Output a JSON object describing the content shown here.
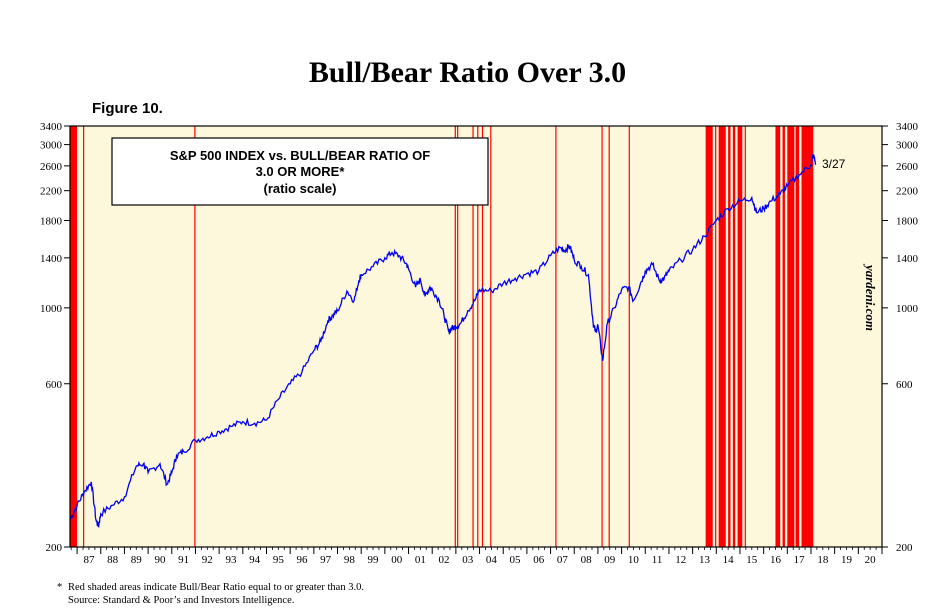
{
  "title": "Bull/Bear Ratio Over 3.0",
  "figure_label": "Figure 10.",
  "footnote": {
    "star": "*",
    "line1": "Red shaded areas indicate Bull/Bear Ratio equal to or greater than 3.0.",
    "line2": "Source: Standard & Poor’s and Investors Intelligence."
  },
  "colors": {
    "background": "#fdf8dc",
    "series": "#0000ee",
    "shade": "#ff0000"
  },
  "chart_data": {
    "type": "line",
    "title": "S&P 500 INDEX vs. BULL/BEAR RATIO OF 3.0 OR MORE*",
    "subtitle": "(ratio scale)",
    "y_scale": "log",
    "ylim": [
      200,
      3400
    ],
    "y_ticks": [
      200,
      600,
      1000,
      1400,
      1800,
      2200,
      2600,
      3000,
      3400
    ],
    "y_tick_labels": [
      "200",
      "600",
      "1000",
      "1400",
      "1800",
      "2200",
      "2600",
      "3000",
      "3400"
    ],
    "xlim": [
      1986.7,
      2021.0
    ],
    "x_tick_labels": [
      "87",
      "88",
      "89",
      "90",
      "91",
      "92",
      "93",
      "94",
      "95",
      "96",
      "97",
      "98",
      "99",
      "00",
      "01",
      "02",
      "03",
      "04",
      "05",
      "06",
      "07",
      "08",
      "09",
      "10",
      "11",
      "12",
      "13",
      "14",
      "15",
      "16",
      "17",
      "18",
      "19",
      "20"
    ],
    "watermark": "yardeni.com",
    "end_label": "3/27",
    "series": [
      {
        "x": [
          1986.7,
          1987.0,
          1987.3,
          1987.6,
          1987.8,
          1987.9,
          1988.0,
          1988.5,
          1989.0,
          1989.5,
          1989.8,
          1990.0,
          1990.5,
          1990.8,
          1991.0,
          1991.2,
          1991.5,
          1992.0,
          1992.5,
          1993.0,
          1993.5,
          1994.0,
          1994.5,
          1995.0,
          1995.5,
          1996.0,
          1996.5,
          1997.0,
          1997.3,
          1997.6,
          1997.8,
          1998.0,
          1998.4,
          1998.7,
          1998.9,
          1999.0,
          1999.5,
          2000.0,
          2000.3,
          2000.6,
          2000.9,
          2001.0,
          2001.3,
          2001.5,
          2001.7,
          2001.9,
          2002.0,
          2002.3,
          2002.5,
          2002.7,
          2002.8,
          2003.0,
          2003.2,
          2003.5,
          2003.8,
          2004.0,
          2004.5,
          2005.0,
          2005.5,
          2006.0,
          2006.5,
          2007.0,
          2007.4,
          2007.6,
          2007.8,
          2008.0,
          2008.3,
          2008.6,
          2008.8,
          2008.9,
          2009.0,
          2009.2,
          2009.4,
          2009.7,
          2010.0,
          2010.3,
          2010.5,
          2010.8,
          2011.0,
          2011.3,
          2011.6,
          2011.8,
          2012.0,
          2012.5,
          2013.0,
          2013.5,
          2014.0,
          2014.5,
          2015.0,
          2015.5,
          2015.7,
          2016.0,
          2016.3,
          2016.7,
          2017.0,
          2017.5,
          2018.0,
          2018.1,
          2018.2
        ],
        "y": [
          240,
          265,
          290,
          310,
          240,
          230,
          250,
          265,
          280,
          345,
          350,
          330,
          350,
          305,
          330,
          370,
          380,
          410,
          420,
          435,
          450,
          465,
          460,
          470,
          540,
          600,
          650,
          750,
          800,
          920,
          950,
          980,
          1120,
          1050,
          1200,
          1250,
          1320,
          1400,
          1450,
          1420,
          1350,
          1300,
          1150,
          1210,
          1080,
          1150,
          1130,
          1050,
          950,
          850,
          870,
          880,
          900,
          980,
          1050,
          1130,
          1120,
          1180,
          1220,
          1260,
          1280,
          1420,
          1500,
          1470,
          1520,
          1380,
          1320,
          1250,
          900,
          850,
          890,
          700,
          900,
          1000,
          1130,
          1150,
          1050,
          1180,
          1280,
          1340,
          1200,
          1220,
          1280,
          1380,
          1480,
          1620,
          1800,
          1950,
          2050,
          2100,
          1900,
          1950,
          2050,
          2150,
          2270,
          2450,
          2620,
          2800,
          2640
        ]
      }
    ],
    "shaded_periods": [
      [
        1986.7,
        1987.0
      ],
      [
        1987.25,
        1987.3
      ],
      [
        1991.95,
        1992.0
      ],
      [
        2002.95,
        2003.0
      ],
      [
        2003.05,
        2003.1
      ],
      [
        2003.7,
        2003.75
      ],
      [
        2003.9,
        2003.95
      ],
      [
        2004.1,
        2004.15
      ],
      [
        2004.45,
        2004.5
      ],
      [
        2007.2,
        2007.25
      ],
      [
        2009.15,
        2009.2
      ],
      [
        2009.45,
        2009.5
      ],
      [
        2010.3,
        2010.35
      ],
      [
        2013.55,
        2013.85
      ],
      [
        2013.95,
        2014.0
      ],
      [
        2014.1,
        2014.4
      ],
      [
        2014.5,
        2014.6
      ],
      [
        2014.7,
        2014.8
      ],
      [
        2014.9,
        2015.1
      ],
      [
        2015.2,
        2015.25
      ],
      [
        2016.5,
        2016.7
      ],
      [
        2016.8,
        2016.9
      ],
      [
        2017.0,
        2017.3
      ],
      [
        2017.35,
        2017.5
      ],
      [
        2017.6,
        2018.1
      ]
    ]
  }
}
